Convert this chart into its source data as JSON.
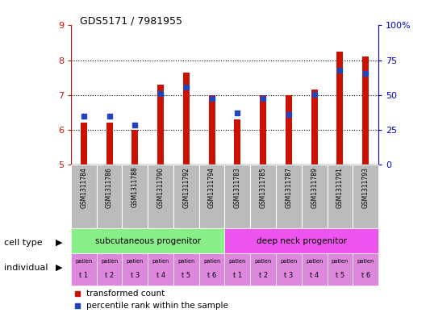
{
  "title": "GDS5171 / 7981955",
  "samples": [
    "GSM1311784",
    "GSM1311786",
    "GSM1311788",
    "GSM1311790",
    "GSM1311792",
    "GSM1311794",
    "GSM1311783",
    "GSM1311785",
    "GSM1311787",
    "GSM1311789",
    "GSM1311791",
    "GSM1311793"
  ],
  "red_values": [
    6.2,
    6.2,
    6.0,
    7.3,
    7.65,
    7.0,
    6.3,
    7.0,
    7.0,
    7.15,
    8.25,
    8.1
  ],
  "blue_values": [
    6.4,
    6.4,
    6.15,
    7.05,
    7.22,
    6.9,
    6.5,
    6.9,
    6.45,
    7.02,
    7.72,
    7.62
  ],
  "ylim_left": [
    5,
    9
  ],
  "ylim_right": [
    0,
    100
  ],
  "yticks_left": [
    5,
    6,
    7,
    8,
    9
  ],
  "yticks_right": [
    0,
    25,
    50,
    75,
    100
  ],
  "bar_bottom": 5.0,
  "bar_color": "#cc1100",
  "blue_color": "#2244bb",
  "bar_width": 0.25,
  "cell_type_groups": [
    {
      "label": "subcutaneous progenitor",
      "start": 0,
      "end": 6,
      "color": "#88ee88"
    },
    {
      "label": "deep neck progenitor",
      "start": 6,
      "end": 12,
      "color": "#ee55ee"
    }
  ],
  "individual_labels": [
    "t 1",
    "t 2",
    "t 3",
    "t 4",
    "t 5",
    "t 6",
    "t 1",
    "t 2",
    "t 3",
    "t 4",
    "t 5",
    "t 6"
  ],
  "individual_color": "#dd88dd",
  "gsm_bg_color": "#bbbbbb",
  "legend_red": "transformed count",
  "legend_blue": "percentile rank within the sample",
  "xlabel_celltype": "cell type",
  "xlabel_individual": "individual",
  "right_axis_color": "#0000cc",
  "left_axis_color": "#cc1100",
  "fig_width": 5.33,
  "fig_height": 3.93,
  "dpi": 100
}
